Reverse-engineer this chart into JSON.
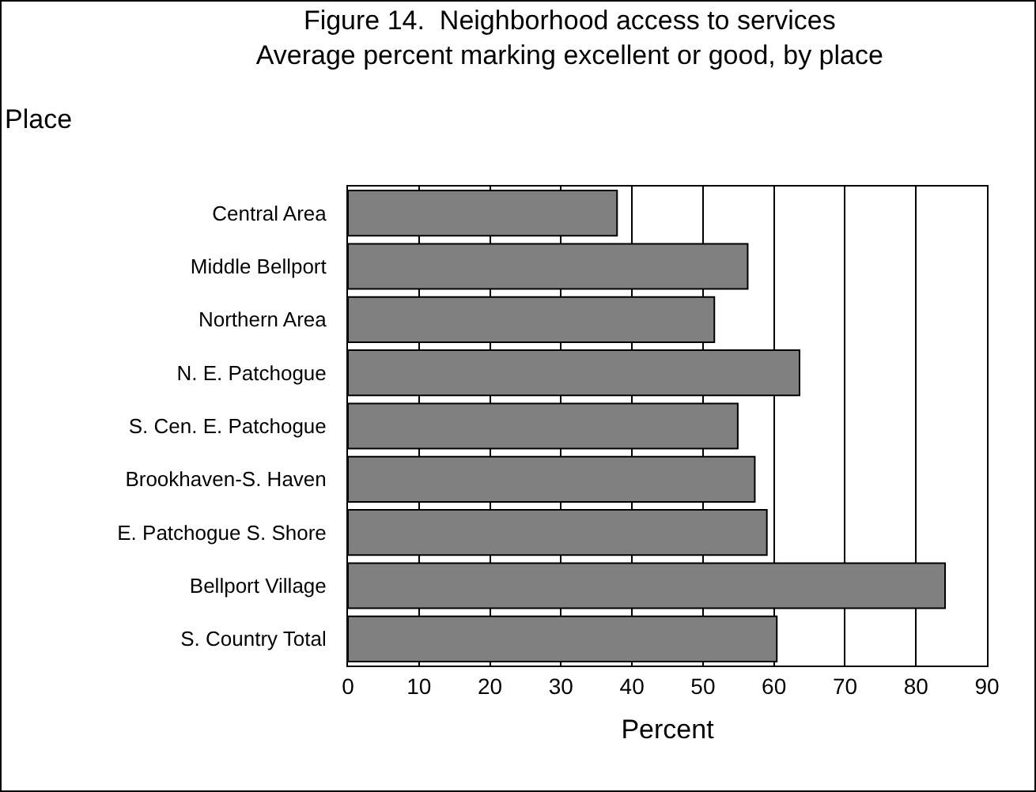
{
  "chart_data": {
    "type": "bar",
    "orientation": "horizontal",
    "title": "Figure 14.  Neighborhood access to services",
    "subtitle": "Average percent marking excellent or good, by place",
    "ylabel": "Place",
    "xlabel": "Percent",
    "categories": [
      "Central Area",
      "Middle Bellport",
      "Northern Area",
      "N. E. Patchogue",
      "S. Cen. E. Patchogue",
      "Brookhaven-S. Haven",
      "E. Patchogue S. Shore",
      "Bellport Village",
      "S. Country Total"
    ],
    "values": [
      37.9,
      56.3,
      51.6,
      63.6,
      54.9,
      57.3,
      59.0,
      84.1,
      60.4
    ],
    "color": "#808080",
    "xlim": [
      0,
      90
    ],
    "xticks": [
      0,
      10,
      20,
      30,
      40,
      50,
      60,
      70,
      80,
      90
    ],
    "grid": "x",
    "legend": false
  }
}
